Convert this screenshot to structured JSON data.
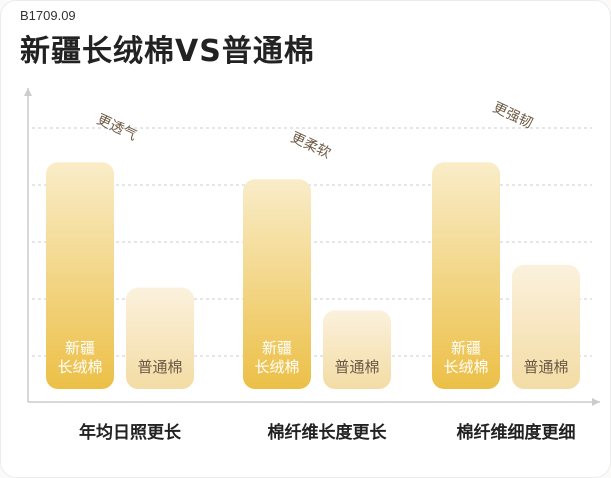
{
  "product_code": "B1709.09",
  "title": "新疆长绒棉VS普通棉",
  "colors": {
    "cotton_a_top": "#f9ecc8",
    "cotton_a_bottom": "#ecc047",
    "cotton_b_top": "#fbf1dd",
    "cotton_b_bottom": "#f3dca4",
    "grid": "#cccccc",
    "axis": "#cccccc"
  },
  "chart_data": {
    "type": "bar",
    "categories": [
      "年均日照更长",
      "棉纤维长度更长",
      "棉纤维细度更细"
    ],
    "series": [
      {
        "name": "新疆\n长绒棉",
        "values": [
          4.4,
          4.1,
          4.4
        ]
      },
      {
        "name": "普通棉",
        "values": [
          2.2,
          1.8,
          2.6
        ]
      }
    ],
    "annotations": [
      "更透气",
      "更柔软",
      "更强韧"
    ],
    "ylim": [
      0,
      5
    ],
    "grid": true,
    "legend": "in-bar labels"
  }
}
